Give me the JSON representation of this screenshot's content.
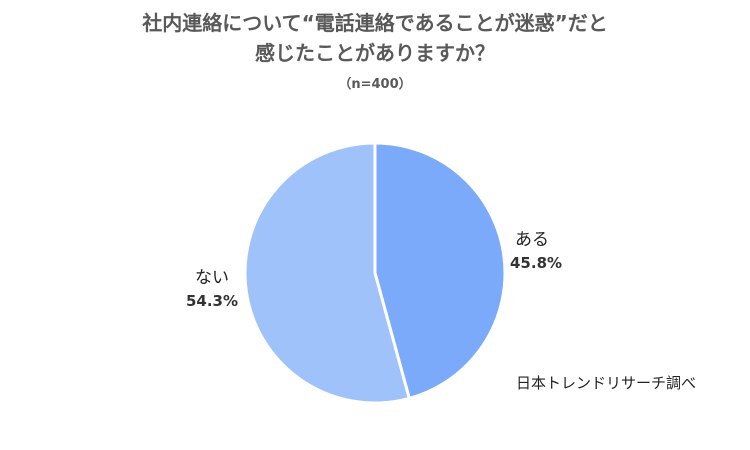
{
  "chart_data": {
    "type": "pie",
    "title_lines": [
      "社内連絡について“電話連絡であることが迷惑”だと",
      "感じたことがありますか？"
    ],
    "subtitle": "（n=400）",
    "slices": [
      {
        "label": "ある",
        "value": 45.8,
        "value_label": "45.8%",
        "color": "#7aaaf9"
      },
      {
        "label": "ない",
        "value": 54.3,
        "value_label": "54.3%",
        "color": "#a0c2fb"
      }
    ],
    "start": "12 o'clock",
    "direction": "clockwise",
    "legend": "none",
    "data_labels": "outside",
    "source": "日本トレンドリサーチ調べ"
  }
}
